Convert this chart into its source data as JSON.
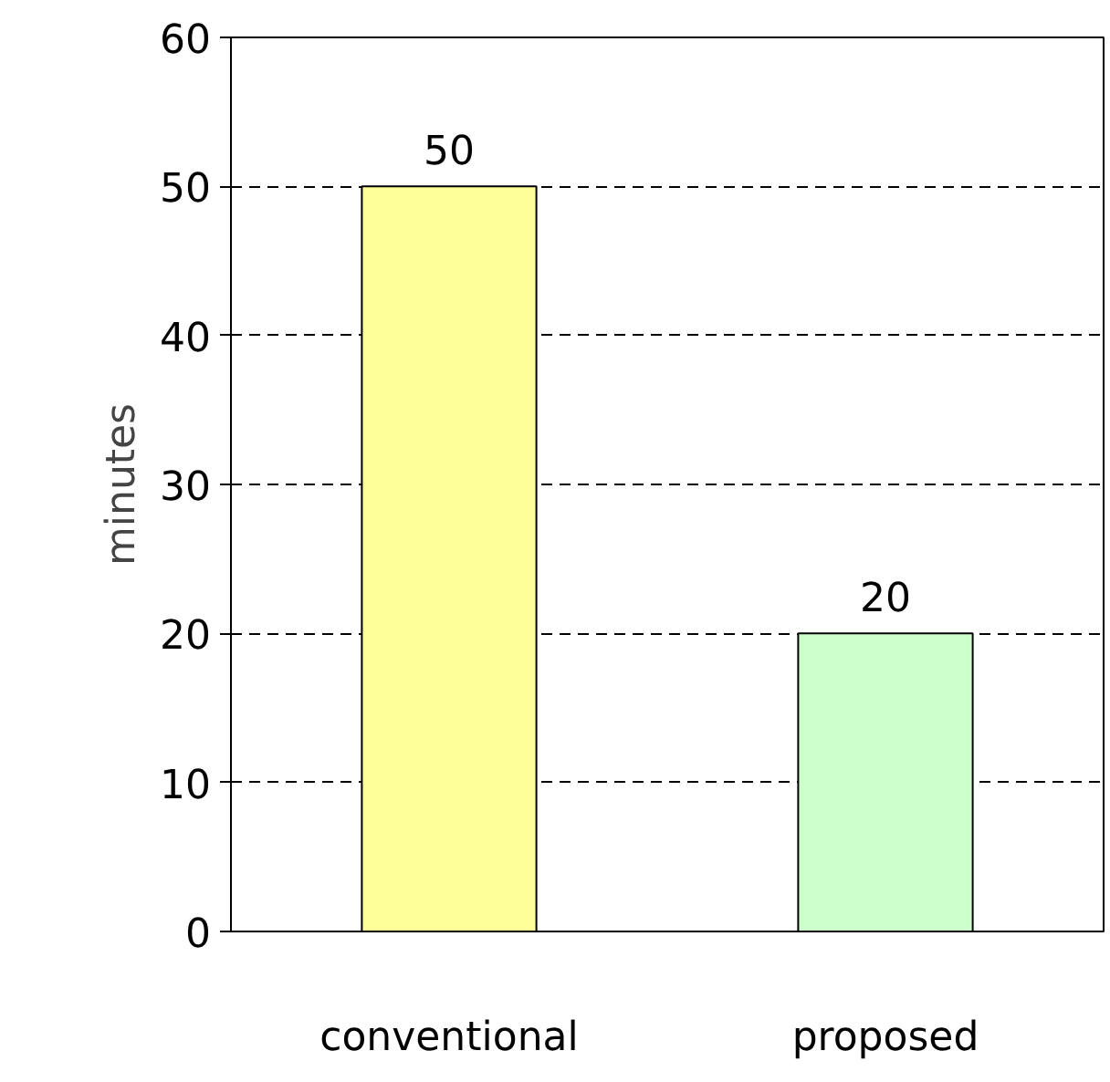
{
  "chart_data": {
    "type": "bar",
    "ylabel": "minutes",
    "categories": [
      "conventional",
      "proposed"
    ],
    "colors": [
      "#ffff99",
      "#ccffcc"
    ],
    "values": [
      50,
      20
    ],
    "ylim": [
      0,
      60
    ],
    "yticks": [
      0,
      10,
      20,
      30,
      40,
      50,
      60
    ],
    "grid": "y",
    "data_labels": true
  }
}
